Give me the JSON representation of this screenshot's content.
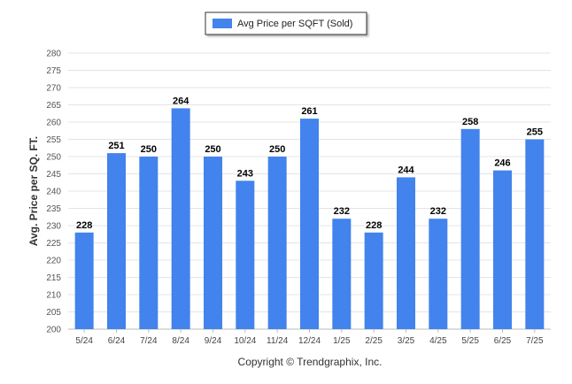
{
  "chart_data": {
    "type": "bar",
    "categories": [
      "5/24",
      "6/24",
      "7/24",
      "8/24",
      "9/24",
      "10/24",
      "11/24",
      "12/24",
      "1/25",
      "2/25",
      "3/25",
      "4/25",
      "5/25",
      "6/25",
      "7/25"
    ],
    "series": [
      {
        "name": "Avg Price per SQFT (Sold)",
        "values": [
          228,
          251,
          250,
          264,
          250,
          243,
          250,
          261,
          232,
          228,
          244,
          232,
          258,
          246,
          255
        ],
        "color": "#4283ED"
      }
    ],
    "ylabel": "Avg. Price per SQ. FT.",
    "xlabel": "",
    "ylim": [
      200,
      280
    ],
    "yticks": [
      200,
      205,
      210,
      215,
      220,
      225,
      230,
      235,
      240,
      245,
      250,
      255,
      260,
      265,
      270,
      275,
      280
    ],
    "grid": true,
    "legend": "top-center",
    "data_labels": true
  },
  "credit": "Copyright © Trendgraphix, Inc."
}
